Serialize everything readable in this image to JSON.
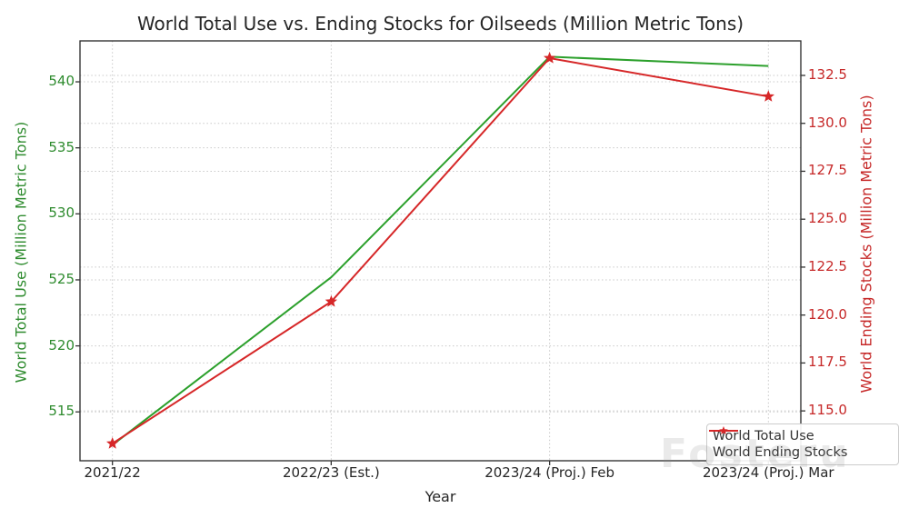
{
  "watermark": "Fosteru",
  "chart_data": {
    "type": "line",
    "title": "World Total Use vs. Ending Stocks for Oilseeds (Million Metric Tons)",
    "xlabel": "Year",
    "categories": [
      "2021/22",
      "2022/23 (Est.)",
      "2023/24 (Proj.) Feb",
      "2023/24 (Proj.) Mar"
    ],
    "series": [
      {
        "name": "World Total Use",
        "axis": "left",
        "color": "#2ca02c",
        "marker": "none",
        "values": [
          512.5,
          525.2,
          541.9,
          541.2
        ]
      },
      {
        "name": "World Ending Stocks",
        "axis": "right",
        "color": "#d62728",
        "marker": "star",
        "values": [
          113.3,
          120.7,
          133.4,
          131.4
        ]
      }
    ],
    "left_axis": {
      "label": "World Total Use (Million Metric Tons)",
      "color": "#2e8b2e",
      "range": [
        511.3,
        543.1
      ],
      "ticks": [
        {
          "value": 515,
          "label": "515"
        },
        {
          "value": 520,
          "label": "520"
        },
        {
          "value": 525,
          "label": "525"
        },
        {
          "value": 530,
          "label": "530"
        },
        {
          "value": 535,
          "label": "535"
        },
        {
          "value": 540,
          "label": "540"
        }
      ]
    },
    "right_axis": {
      "label": "World Ending Stocks (Million Metric Tons)",
      "color": "#c62828",
      "range": [
        112.4,
        134.3
      ],
      "ticks": [
        {
          "value": 115.0,
          "label": "115.0"
        },
        {
          "value": 117.5,
          "label": "117.5"
        },
        {
          "value": 120.0,
          "label": "120.0"
        },
        {
          "value": 122.5,
          "label": "122.5"
        },
        {
          "value": 125.0,
          "label": "125.0"
        },
        {
          "value": 127.5,
          "label": "127.5"
        },
        {
          "value": 130.0,
          "label": "130.0"
        },
        {
          "value": 132.5,
          "label": "132.5"
        }
      ]
    },
    "legend": {
      "position": "lower right",
      "entries": [
        "World Total Use",
        "World Ending Stocks"
      ]
    },
    "grid": true
  }
}
